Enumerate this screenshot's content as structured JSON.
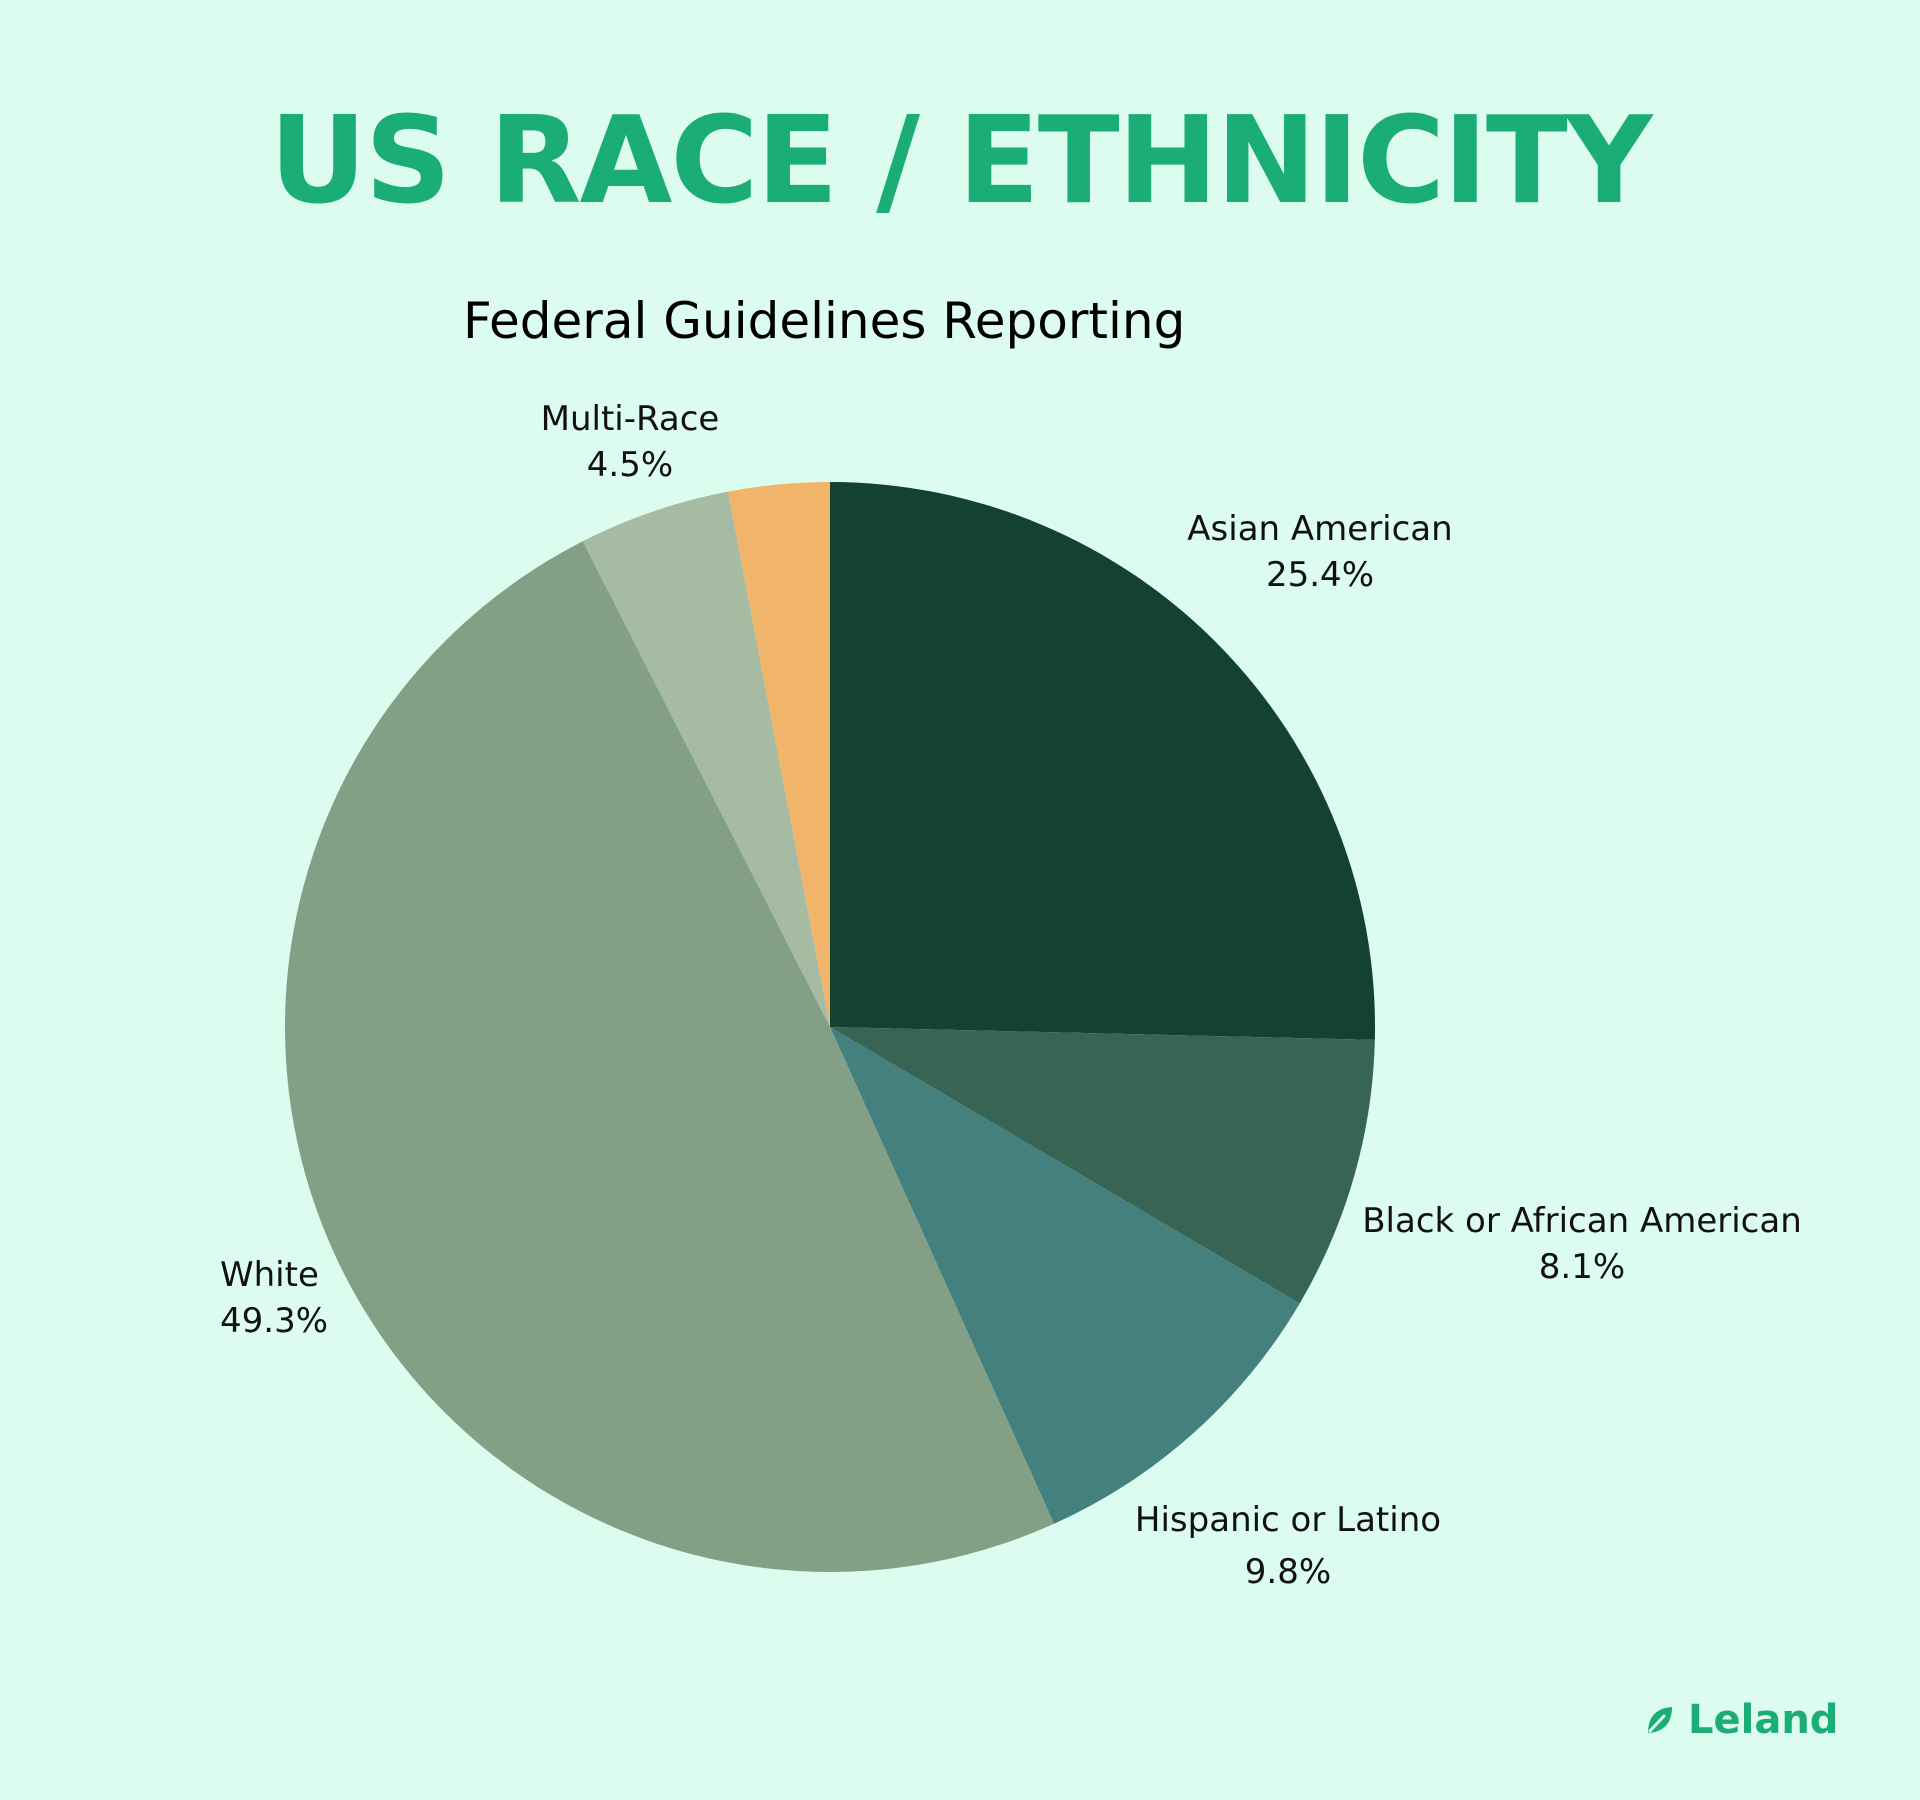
{
  "title": "US RACE / ETHNICITY",
  "brand": {
    "name": "Leland",
    "icon": "leaf-icon"
  },
  "colors": {
    "background": "#dcfcef",
    "accent": "#1aad78"
  },
  "chart_data": {
    "type": "pie",
    "title": "Federal Guidelines Reporting",
    "slices": [
      {
        "label": "Asian American",
        "value_label": "25.4%",
        "value": 25.4,
        "color": "#134233"
      },
      {
        "label": "Black or African American",
        "value_label": "8.1%",
        "value": 8.1,
        "color": "#376453"
      },
      {
        "label": "Hispanic or Latino",
        "value_label": "9.8%",
        "value": 9.8,
        "color": "#43807e"
      },
      {
        "label": "White",
        "value_label": "49.3%",
        "value": 49.3,
        "color": "#83a086"
      },
      {
        "label": "Multi-Race",
        "value_label": "4.5%",
        "value": 4.5,
        "color": "#a6bba1"
      },
      {
        "label": "",
        "value_label": "",
        "value": 3.0,
        "color": "#f0b56b"
      }
    ]
  }
}
